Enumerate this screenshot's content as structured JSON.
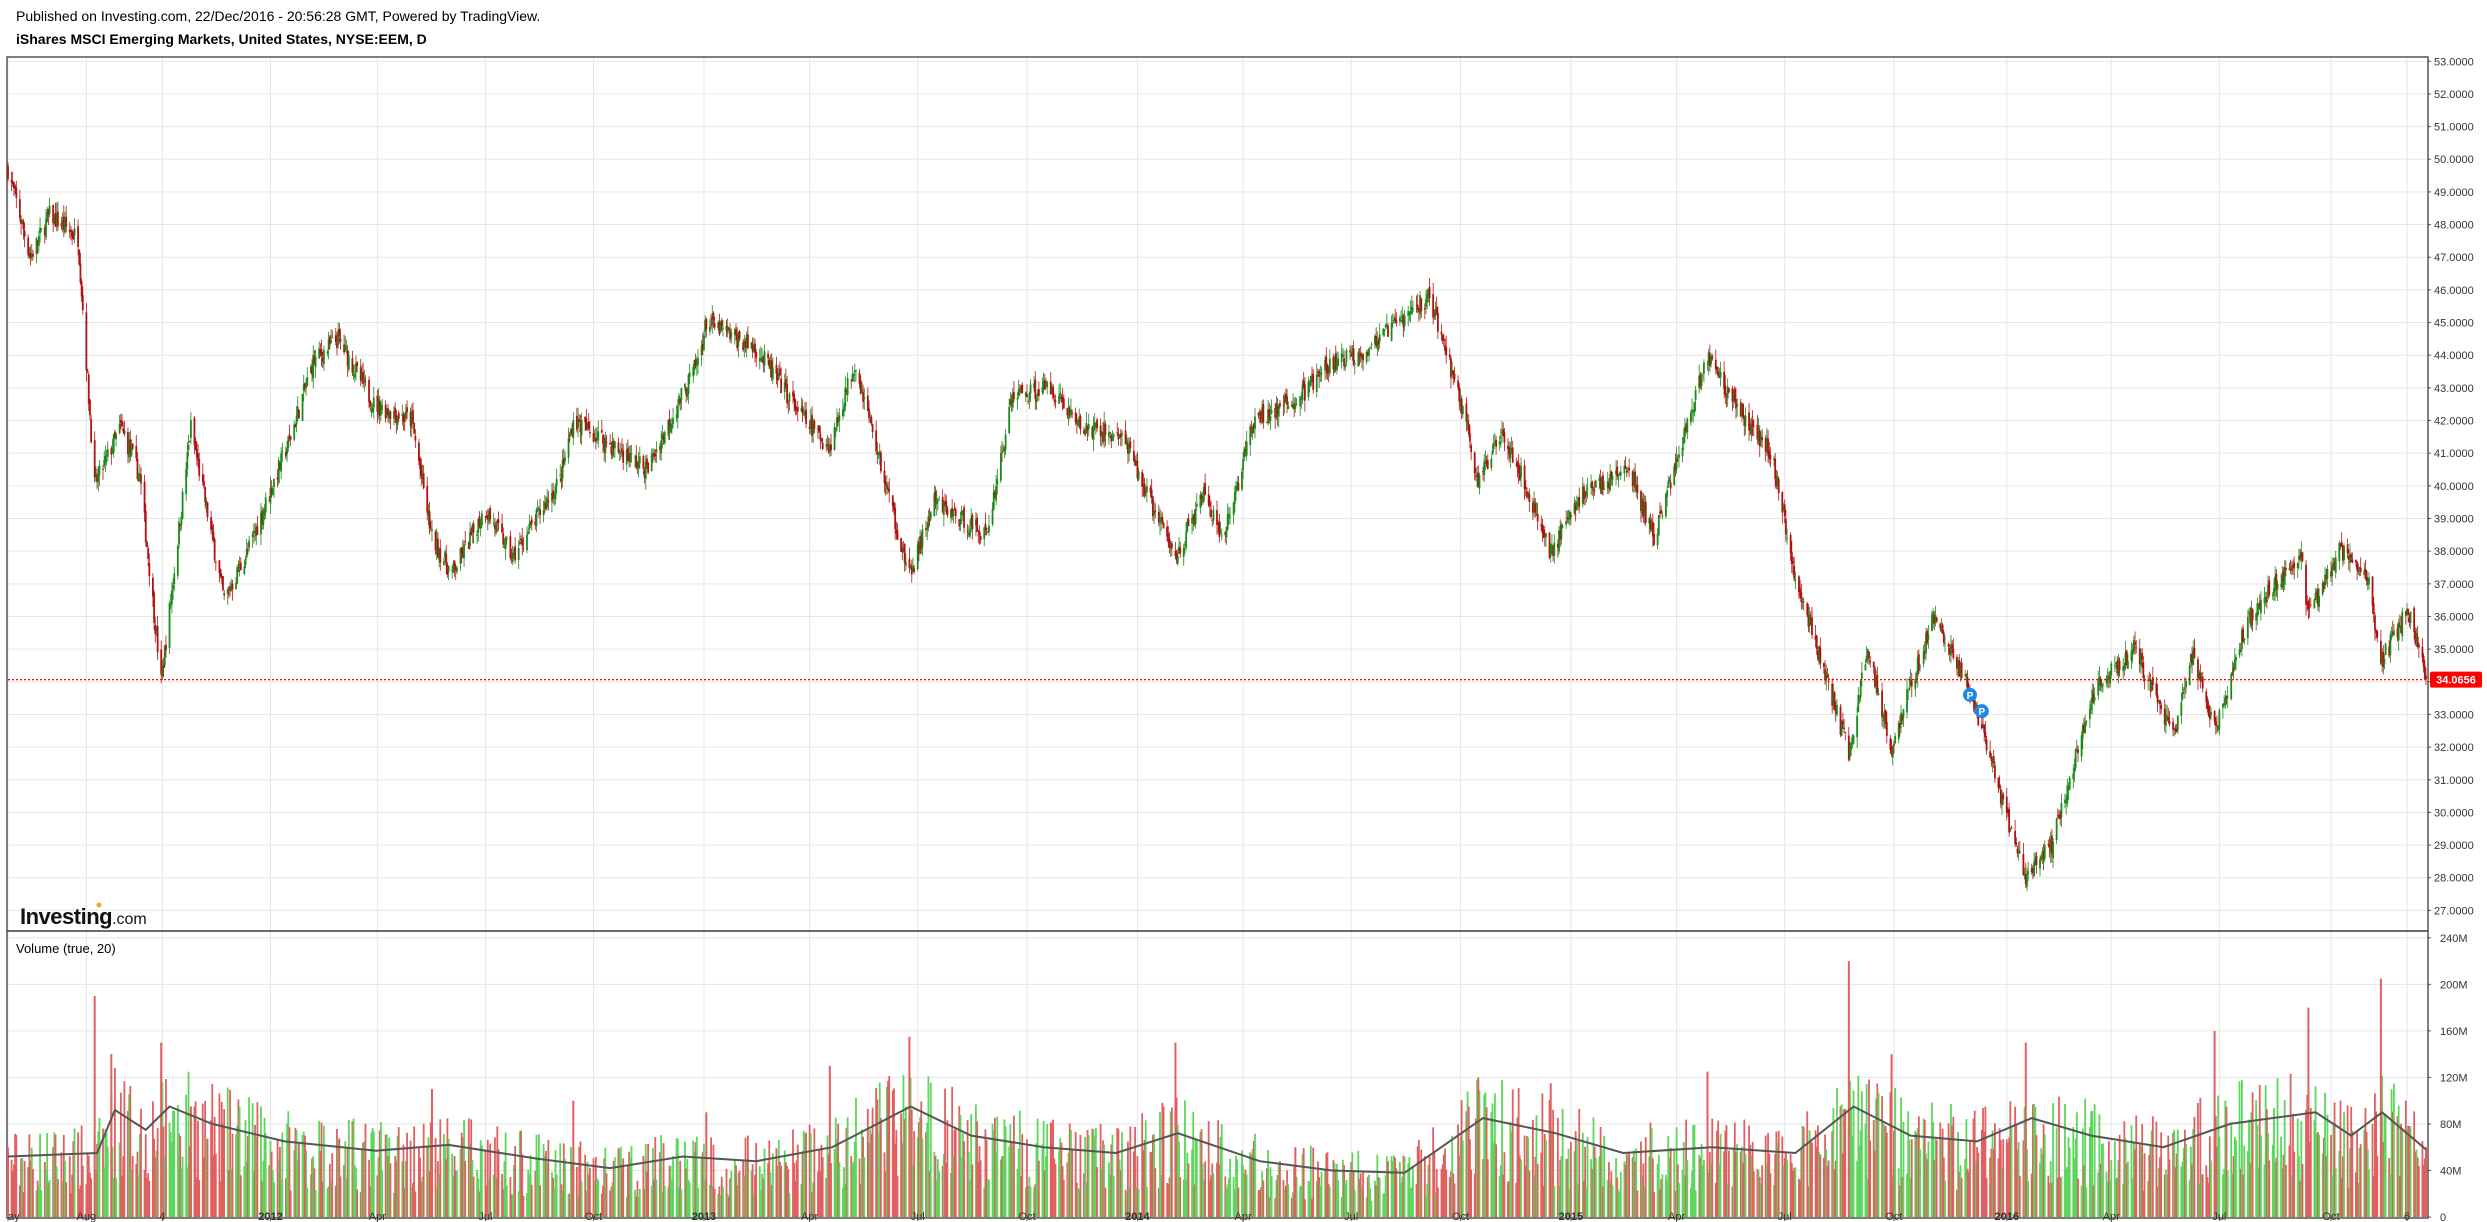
{
  "header": {
    "published": "Published on Investing.com, 22/Dec/2016 - 20:56:28 GMT, Powered by TradingView.",
    "symbol": "iShares MSCI Emerging Markets, United States, NYSE:EEM, D"
  },
  "branding": {
    "main": "Investing",
    "domain": ".com"
  },
  "volume_panel": {
    "title": "Volume (true, 20)"
  },
  "last_price": {
    "label": "34.0656",
    "value": 34.0656,
    "color": "#ff0000"
  },
  "markers": [
    {
      "text": "P",
      "date": "2015-12-04",
      "price": 33.6
    },
    {
      "text": "P",
      "date": "2015-12-14",
      "price": 33.1
    }
  ],
  "colors": {
    "up": "#1a8a1a",
    "down": "#b11111",
    "vol_up": "#5cd65c",
    "vol_down": "#e06060",
    "volume_ma": "#555555",
    "marker": "#1e88e5",
    "grid": "#e6e6e6"
  },
  "chart_data": [
    {
      "type": "candlestick",
      "title": "iShares MSCI Emerging Markets, United States, NYSE:EEM, D",
      "x_range": [
        "2011-05-27",
        "2016-12-22"
      ],
      "ylim": [
        26.4,
        53.1
      ],
      "y_ticks": [
        27,
        28,
        29,
        30,
        31,
        32,
        33,
        34,
        35,
        36,
        37,
        38,
        39,
        40,
        41,
        42,
        43,
        44,
        45,
        46,
        47,
        48,
        49,
        50,
        51,
        52,
        53
      ],
      "y_tick_labels": [
        "27.0000",
        "28.0000",
        "29.0000",
        "30.0000",
        "31.0000",
        "32.0000",
        "33.0000",
        "34.0000",
        "35.0000",
        "36.0000",
        "37.0000",
        "38.0000",
        "39.0000",
        "40.0000",
        "41.0000",
        "42.0000",
        "43.0000",
        "44.0000",
        "45.0000",
        "46.0000",
        "47.0000",
        "48.0000",
        "49.0000",
        "50.0000",
        "51.0000",
        "52.0000",
        "53.0000"
      ],
      "x_ticks": [
        {
          "label": "ay",
          "date": "2011-05-27",
          "bold": false
        },
        {
          "label": "Aug",
          "date": "2011-08-01",
          "bold": false
        },
        {
          "label": "4",
          "date": "2011-10-04",
          "bold": false
        },
        {
          "label": "2012",
          "date": "2012-01-03",
          "bold": true
        },
        {
          "label": "Apr",
          "date": "2012-04-02",
          "bold": false
        },
        {
          "label": "Jul",
          "date": "2012-07-02",
          "bold": false
        },
        {
          "label": "Oct",
          "date": "2012-10-01",
          "bold": false
        },
        {
          "label": "2013",
          "date": "2013-01-02",
          "bold": true
        },
        {
          "label": "Apr",
          "date": "2013-04-01",
          "bold": false
        },
        {
          "label": "Jul",
          "date": "2013-07-01",
          "bold": false
        },
        {
          "label": "Oct",
          "date": "2013-10-01",
          "bold": false
        },
        {
          "label": "2014",
          "date": "2014-01-02",
          "bold": true
        },
        {
          "label": "Apr",
          "date": "2014-04-01",
          "bold": false
        },
        {
          "label": "Jul",
          "date": "2014-07-01",
          "bold": false
        },
        {
          "label": "Oct",
          "date": "2014-10-01",
          "bold": false
        },
        {
          "label": "2015",
          "date": "2015-01-02",
          "bold": true
        },
        {
          "label": "Apr",
          "date": "2015-04-01",
          "bold": false
        },
        {
          "label": "Jul",
          "date": "2015-07-01",
          "bold": false
        },
        {
          "label": "Oct",
          "date": "2015-10-01",
          "bold": false
        },
        {
          "label": "2016",
          "date": "2016-01-04",
          "bold": true
        },
        {
          "label": "Apr",
          "date": "2016-04-01",
          "bold": false
        },
        {
          "label": "Jul",
          "date": "2016-07-01",
          "bold": false
        },
        {
          "label": "Oct",
          "date": "2016-10-03",
          "bold": false
        },
        {
          "label": "6",
          "date": "2016-12-06",
          "bold": false
        }
      ],
      "series": [
        {
          "name": "close",
          "points": [
            [
              "2011-05-27",
              49.7
            ],
            [
              "2011-06-15",
              47.0
            ],
            [
              "2011-07-01",
              48.3
            ],
            [
              "2011-07-25",
              47.6
            ],
            [
              "2011-08-08",
              40.0
            ],
            [
              "2011-08-30",
              41.8
            ],
            [
              "2011-09-15",
              40.3
            ],
            [
              "2011-10-03",
              34.0
            ],
            [
              "2011-10-28",
              41.8
            ],
            [
              "2011-11-25",
              36.5
            ],
            [
              "2011-12-15",
              38.0
            ],
            [
              "2012-01-20",
              41.5
            ],
            [
              "2012-02-08",
              43.8
            ],
            [
              "2012-02-29",
              44.5
            ],
            [
              "2012-03-30",
              42.5
            ],
            [
              "2012-05-01",
              42.0
            ],
            [
              "2012-05-18",
              38.4
            ],
            [
              "2012-06-04",
              37.3
            ],
            [
              "2012-07-02",
              39.3
            ],
            [
              "2012-07-25",
              37.8
            ],
            [
              "2012-09-03",
              40.2
            ],
            [
              "2012-09-14",
              42.0
            ],
            [
              "2012-10-26",
              41.0
            ],
            [
              "2012-11-15",
              40.5
            ],
            [
              "2012-12-28",
              43.8
            ],
            [
              "2013-01-04",
              45.0
            ],
            [
              "2013-02-15",
              44.2
            ],
            [
              "2013-03-28",
              42.0
            ],
            [
              "2013-04-18",
              41.2
            ],
            [
              "2013-05-09",
              43.8
            ],
            [
              "2013-06-24",
              37.2
            ],
            [
              "2013-07-15",
              39.5
            ],
            [
              "2013-08-28",
              38.5
            ],
            [
              "2013-09-19",
              42.8
            ],
            [
              "2013-10-22",
              43.0
            ],
            [
              "2013-11-15",
              41.8
            ],
            [
              "2013-12-20",
              41.5
            ],
            [
              "2014-02-03",
              37.8
            ],
            [
              "2014-02-28",
              39.8
            ],
            [
              "2014-03-14",
              38.2
            ],
            [
              "2014-04-10",
              42.0
            ],
            [
              "2014-05-15",
              42.6
            ],
            [
              "2014-06-10",
              43.6
            ],
            [
              "2014-07-15",
              44.2
            ],
            [
              "2014-09-05",
              45.8
            ],
            [
              "2014-10-06",
              42.0
            ],
            [
              "2014-10-16",
              40.0
            ],
            [
              "2014-11-05",
              41.8
            ],
            [
              "2014-12-16",
              38.0
            ],
            [
              "2015-01-12",
              39.8
            ],
            [
              "2015-02-20",
              40.5
            ],
            [
              "2015-03-13",
              38.4
            ],
            [
              "2015-04-27",
              44.0
            ],
            [
              "2015-05-26",
              42.2
            ],
            [
              "2015-06-20",
              41.0
            ],
            [
              "2015-07-08",
              37.5
            ],
            [
              "2015-08-24",
              31.8
            ],
            [
              "2015-09-09",
              35.0
            ],
            [
              "2015-09-29",
              32.0
            ],
            [
              "2015-11-03",
              36.0
            ],
            [
              "2015-12-01",
              34.0
            ],
            [
              "2016-01-20",
              28.0
            ],
            [
              "2016-02-11",
              29.0
            ],
            [
              "2016-03-18",
              33.8
            ],
            [
              "2016-04-20",
              35.0
            ],
            [
              "2016-05-24",
              32.3
            ],
            [
              "2016-06-08",
              34.8
            ],
            [
              "2016-06-27",
              32.5
            ],
            [
              "2016-07-26",
              36.0
            ],
            [
              "2016-09-07",
              38.0
            ],
            [
              "2016-09-14",
              36.0
            ],
            [
              "2016-10-10",
              38.0
            ],
            [
              "2016-11-03",
              37.2
            ],
            [
              "2016-11-14",
              34.6
            ],
            [
              "2016-12-07",
              36.2
            ],
            [
              "2016-12-22",
              34.0656
            ]
          ]
        },
        {
          "name": "volume",
          "unit": "shares",
          "ylim": [
            0,
            245000000
          ],
          "y_ticks": [
            0,
            40000000,
            80000000,
            120000000,
            160000000,
            200000000,
            240000000
          ],
          "y_tick_labels": [
            "0",
            "40M",
            "80M",
            "120M",
            "160M",
            "200M",
            "240M"
          ],
          "points": [
            [
              "2011-05-27",
              55000000
            ],
            [
              "2011-08-08",
              190000000
            ],
            [
              "2011-08-22",
              140000000
            ],
            [
              "2011-10-03",
              150000000
            ],
            [
              "2011-10-28",
              95000000
            ],
            [
              "2012-02-01",
              70000000
            ],
            [
              "2012-05-18",
              110000000
            ],
            [
              "2012-09-14",
              100000000
            ],
            [
              "2013-01-04",
              90000000
            ],
            [
              "2013-04-18",
              130000000
            ],
            [
              "2013-06-24",
              155000000
            ],
            [
              "2013-10-22",
              80000000
            ],
            [
              "2014-02-03",
              150000000
            ],
            [
              "2014-05-15",
              60000000
            ],
            [
              "2014-10-16",
              120000000
            ],
            [
              "2014-12-16",
              115000000
            ],
            [
              "2015-04-27",
              125000000
            ],
            [
              "2015-08-24",
              220000000
            ],
            [
              "2015-09-29",
              140000000
            ],
            [
              "2016-01-20",
              150000000
            ],
            [
              "2016-06-27",
              160000000
            ],
            [
              "2016-09-14",
              180000000
            ],
            [
              "2016-11-14",
              205000000
            ],
            [
              "2016-12-22",
              60000000
            ]
          ]
        },
        {
          "name": "volume_ma_20",
          "unit": "shares",
          "points": [
            [
              "2011-05-27",
              52000000
            ],
            [
              "2011-08-10",
              55000000
            ],
            [
              "2011-08-25",
              92000000
            ],
            [
              "2011-09-20",
              75000000
            ],
            [
              "2011-10-10",
              95000000
            ],
            [
              "2011-11-15",
              80000000
            ],
            [
              "2012-01-15",
              65000000
            ],
            [
              "2012-04-01",
              57000000
            ],
            [
              "2012-06-01",
              62000000
            ],
            [
              "2012-08-15",
              50000000
            ],
            [
              "2012-10-15",
              42000000
            ],
            [
              "2012-12-15",
              52000000
            ],
            [
              "2013-02-15",
              48000000
            ],
            [
              "2013-04-20",
              60000000
            ],
            [
              "2013-06-25",
              95000000
            ],
            [
              "2013-08-15",
              70000000
            ],
            [
              "2013-10-15",
              60000000
            ],
            [
              "2013-12-15",
              55000000
            ],
            [
              "2014-02-05",
              72000000
            ],
            [
              "2014-04-15",
              48000000
            ],
            [
              "2014-06-15",
              40000000
            ],
            [
              "2014-08-15",
              38000000
            ],
            [
              "2014-10-20",
              85000000
            ],
            [
              "2014-12-20",
              72000000
            ],
            [
              "2015-02-15",
              55000000
            ],
            [
              "2015-05-01",
              60000000
            ],
            [
              "2015-07-10",
              55000000
            ],
            [
              "2015-08-28",
              95000000
            ],
            [
              "2015-10-15",
              70000000
            ],
            [
              "2015-12-10",
              65000000
            ],
            [
              "2016-01-25",
              85000000
            ],
            [
              "2016-03-15",
              70000000
            ],
            [
              "2016-05-15",
              60000000
            ],
            [
              "2016-07-10",
              80000000
            ],
            [
              "2016-09-20",
              90000000
            ],
            [
              "2016-10-20",
              70000000
            ],
            [
              "2016-11-15",
              90000000
            ],
            [
              "2016-12-22",
              58000000
            ]
          ]
        }
      ]
    }
  ]
}
